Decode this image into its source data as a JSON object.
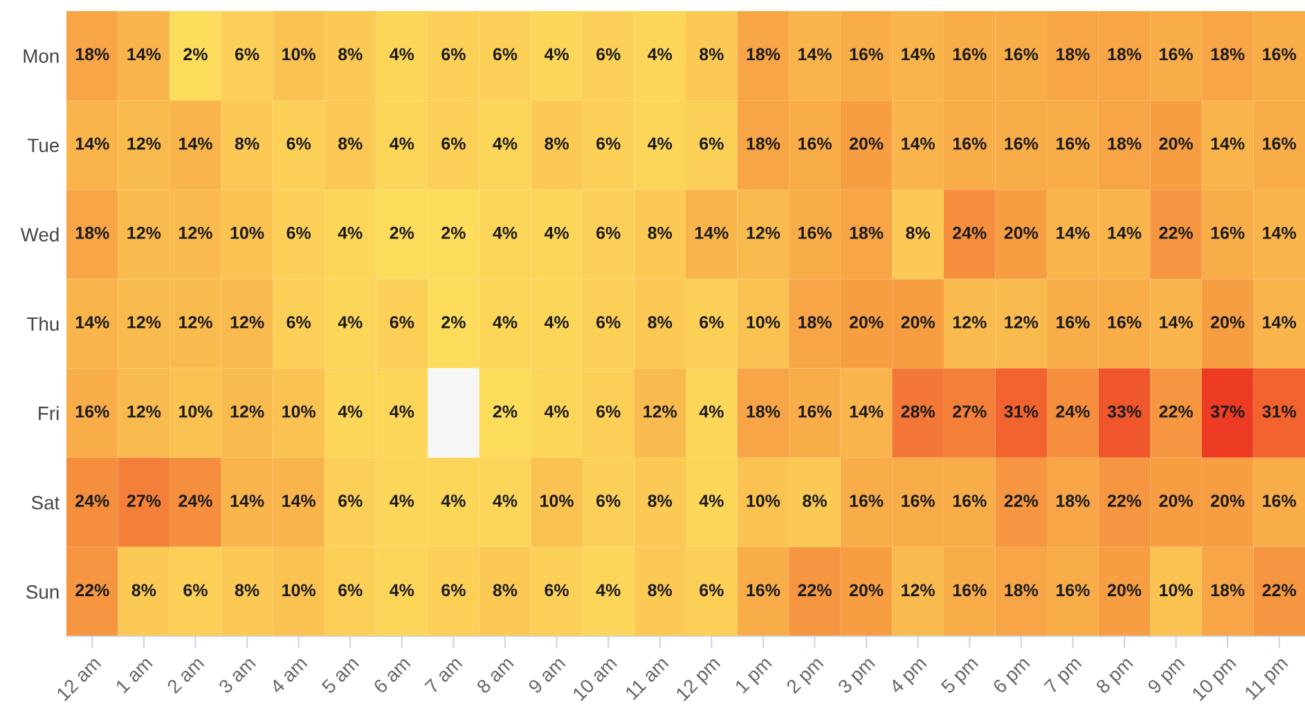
{
  "chart_data": {
    "type": "heatmap",
    "categories": [
      "12 am",
      "1 am",
      "2 am",
      "3 am",
      "4 am",
      "5 am",
      "6 am",
      "7 am",
      "8 am",
      "9 am",
      "10 am",
      "11 am",
      "12 pm",
      "1 pm",
      "2 pm",
      "3 pm",
      "4 pm",
      "5 pm",
      "6 pm",
      "7 pm",
      "8 pm",
      "9 pm",
      "10 pm",
      "11 pm"
    ],
    "y_categories": [
      "Mon",
      "Tue",
      "Wed",
      "Thu",
      "Fri",
      "Sat",
      "Sun"
    ],
    "cells": [
      [
        18,
        14,
        2,
        6,
        10,
        8,
        4,
        6,
        6,
        4,
        6,
        4,
        8,
        18,
        14,
        16,
        14,
        16,
        16,
        18,
        18,
        16,
        18,
        16
      ],
      [
        14,
        12,
        14,
        8,
        6,
        8,
        4,
        6,
        4,
        8,
        6,
        4,
        6,
        18,
        16,
        20,
        14,
        16,
        16,
        16,
        18,
        20,
        14,
        16
      ],
      [
        18,
        12,
        12,
        10,
        6,
        4,
        2,
        2,
        4,
        4,
        6,
        8,
        14,
        12,
        16,
        18,
        8,
        24,
        20,
        14,
        14,
        22,
        16,
        14
      ],
      [
        14,
        12,
        12,
        12,
        6,
        4,
        6,
        2,
        4,
        4,
        6,
        8,
        6,
        10,
        18,
        20,
        20,
        12,
        12,
        16,
        16,
        14,
        20,
        14
      ],
      [
        16,
        12,
        10,
        12,
        10,
        4,
        4,
        null,
        2,
        4,
        6,
        12,
        4,
        18,
        16,
        14,
        28,
        27,
        31,
        24,
        33,
        22,
        37,
        31
      ],
      [
        24,
        27,
        24,
        14,
        14,
        6,
        4,
        4,
        4,
        10,
        6,
        8,
        4,
        10,
        8,
        16,
        16,
        16,
        22,
        18,
        22,
        20,
        20,
        16
      ],
      [
        22,
        8,
        6,
        8,
        10,
        6,
        4,
        6,
        8,
        6,
        4,
        8,
        6,
        16,
        22,
        20,
        12,
        16,
        18,
        16,
        20,
        10,
        18,
        22
      ]
    ],
    "cell_labels": [
      [
        "18%",
        "14%",
        "2%",
        "6%",
        "10%",
        "8%",
        "4%",
        "6%",
        "6%",
        "4%",
        "6%",
        "4%",
        "8%",
        "18%",
        "14%",
        "16%",
        "14%",
        "16%",
        "16%",
        "18%",
        "18%",
        "16%",
        "18%",
        "16%"
      ],
      [
        "14%",
        "12%",
        "14%",
        "8%",
        "6%",
        "8%",
        "4%",
        "6%",
        "4%",
        "8%",
        "6%",
        "4%",
        "6%",
        "18%",
        "16%",
        "20%",
        "14%",
        "16%",
        "16%",
        "16%",
        "18%",
        "20%",
        "14%",
        "16%"
      ],
      [
        "18%",
        "12%",
        "12%",
        "10%",
        "6%",
        "4%",
        "2%",
        "2%",
        "4%",
        "4%",
        "6%",
        "8%",
        "14%",
        "12%",
        "16%",
        "18%",
        "8%",
        "24%",
        "20%",
        "14%",
        "14%",
        "22%",
        "16%",
        "14%"
      ],
      [
        "14%",
        "12%",
        "12%",
        "12%",
        "6%",
        "4%",
        "6%",
        "2%",
        "4%",
        "4%",
        "6%",
        "8%",
        "6%",
        "10%",
        "18%",
        "20%",
        "20%",
        "12%",
        "12%",
        "16%",
        "16%",
        "14%",
        "20%",
        "14%"
      ],
      [
        "16%",
        "12%",
        "10%",
        "12%",
        "10%",
        "4%",
        "4%",
        null,
        "2%",
        "4%",
        "6%",
        "12%",
        "4%",
        "18%",
        "16%",
        "14%",
        "28%",
        "27%",
        "31%",
        "24%",
        "33%",
        "22%",
        "37%",
        "31%"
      ],
      [
        "24%",
        "27%",
        "24%",
        "14%",
        "14%",
        "6%",
        "4%",
        "4%",
        "4%",
        "10%",
        "6%",
        "8%",
        "4%",
        "10%",
        "8%",
        "16%",
        "16%",
        "16%",
        "22%",
        "18%",
        "22%",
        "20%",
        "20%",
        "16%"
      ],
      [
        "22%",
        "8%",
        "6%",
        "8%",
        "10%",
        "6%",
        "4%",
        "6%",
        "8%",
        "6%",
        "4%",
        "8%",
        "6%",
        "16%",
        "22%",
        "20%",
        "12%",
        "16%",
        "18%",
        "16%",
        "20%",
        "10%",
        "18%",
        "22%"
      ]
    ]
  }
}
